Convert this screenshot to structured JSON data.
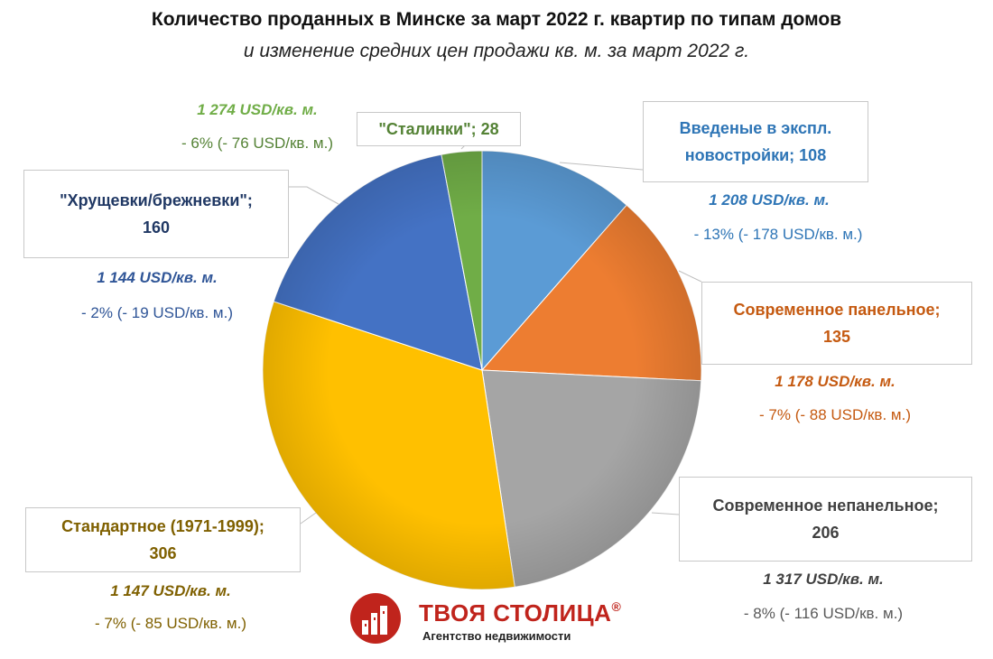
{
  "title": "Количество проданных в Минске за март 2022 г. квартир по типам домов",
  "subtitle": "и изменение средних цен продажи кв. м. за март 2022 г.",
  "chart_data": {
    "type": "pie",
    "start_angle": 0,
    "direction": "clockwise",
    "slices": [
      {
        "label": "Введеные в экспл. новостройки",
        "value": 108,
        "color": "#5B9BD5",
        "price": "1 208 USD/кв. м.",
        "change": "- 13% (- 178 USD/кв. м.)",
        "text_color": "#2E75B6",
        "price_color": "#2E75B6",
        "change_color": "#2E75B6"
      },
      {
        "label": "Современное панельное",
        "value": 135,
        "color": "#ED7D31",
        "price": "1 178 USD/кв. м.",
        "change": "- 7% (- 88 USD/кв. м.)",
        "text_color": "#C55A11",
        "price_color": "#C55A11",
        "change_color": "#C55A11"
      },
      {
        "label": "Современное непанельное",
        "value": 206,
        "color": "#A5A5A5",
        "price": "1 317 USD/кв. м.",
        "change": "- 8% (- 116 USD/кв. м.)",
        "text_color": "#404040",
        "price_color": "#404040",
        "change_color": "#595959"
      },
      {
        "label": "Стандартное (1971-1999)",
        "value": 306,
        "color": "#FFC000",
        "price": "1 147 USD/кв. м.",
        "change": "- 7% (- 85 USD/кв. м.)",
        "text_color": "#7F6000",
        "price_color": "#7F6000",
        "change_color": "#7F6000"
      },
      {
        "label": "\"Хрущевки/брежневки\"",
        "value": 160,
        "color": "#4472C4",
        "price": "1 144 USD/кв. м.",
        "change": "- 2% (- 19 USD/кв. м.)",
        "text_color": "#203864",
        "price_color": "#2F5597",
        "change_color": "#2F5597"
      },
      {
        "label": "\"Сталинки\"",
        "value": 28,
        "color": "#70AD47",
        "price": "1 274 USD/кв. м.",
        "change": "- 6% (- 76 USD/кв. м.)",
        "text_color": "#548235",
        "price_color": "#70AD47",
        "change_color": "#548235"
      }
    ]
  },
  "callouts": {
    "novostroyki": {
      "line1": "Введеные в экспл.",
      "line2": "новостройки; 108"
    },
    "panel": {
      "line1": "Современное панельное;",
      "line2": "135"
    },
    "nonpanel": {
      "line1": "Современное непанельное;",
      "line2": "206"
    },
    "standard": {
      "line1": "Стандартное (1971-1999);",
      "line2": "306"
    },
    "khrush": {
      "line1": "\"Хрущевки/брежневки\";",
      "line2": "160"
    },
    "stalin": {
      "line1": "\"Сталинки\"; 28"
    }
  },
  "brand": {
    "name": "ТВОЯ СТОЛИЦА",
    "mark": "®",
    "tagline": "Агентство недвижимости"
  }
}
